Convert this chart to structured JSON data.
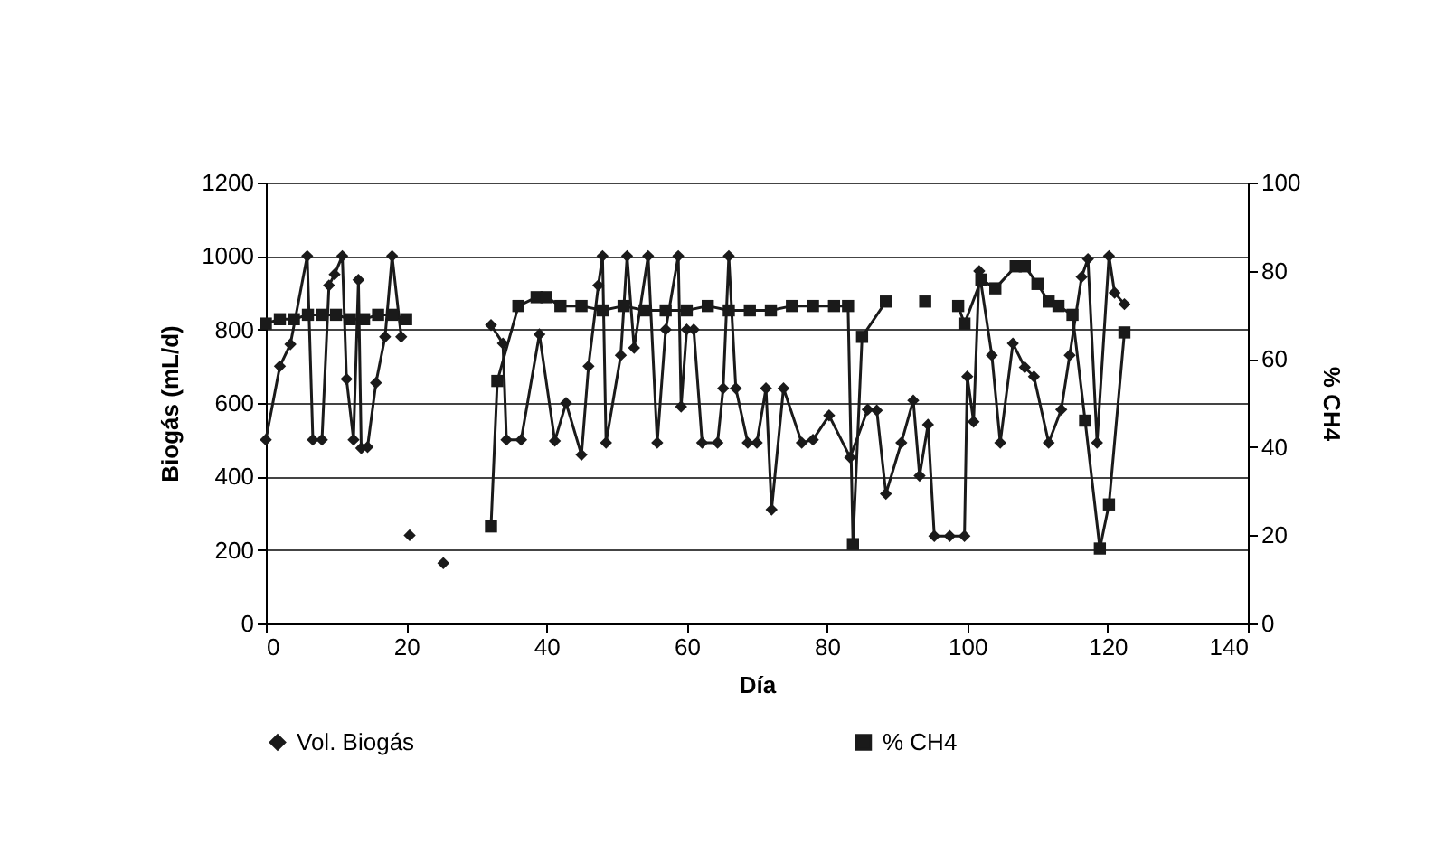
{
  "chart_data": {
    "type": "line",
    "xlabel": "Día",
    "ylabel": "Biogás (mL/d)",
    "y2label": "% CH4",
    "xlim": [
      0,
      140
    ],
    "xticks": [
      0,
      20,
      40,
      60,
      80,
      100,
      120,
      140
    ],
    "ylim": [
      0,
      1200
    ],
    "yticks": [
      0,
      200,
      400,
      600,
      800,
      1000,
      1200
    ],
    "y2lim": [
      0,
      100
    ],
    "y2ticks": [
      0,
      20,
      40,
      60,
      80,
      100
    ],
    "grid": "y",
    "legend": "bottom",
    "line_style": "solid",
    "series": [
      {
        "name": "Vol. Biogás",
        "color": "#1a1a1a",
        "marker": "diamond",
        "x": [
          0,
          2,
          3.5,
          5.9,
          6.7,
          8,
          9,
          9.8,
          10.9,
          11.5,
          12.5,
          13.2,
          13.6,
          14.5,
          15.7,
          17,
          18,
          19.3,
          20,
          20.5,
          23,
          25.3,
          28,
          32.1,
          33.8,
          34.3,
          36.4,
          39,
          41.2,
          42.8,
          45,
          46,
          47.4,
          48,
          48.5,
          50.6,
          51.5,
          52.5,
          54.5,
          55.8,
          57,
          58.8,
          59.2,
          60,
          61,
          62.2,
          64.4,
          65.2,
          66,
          67,
          68.7,
          70,
          71.3,
          72.1,
          73.8,
          76.4,
          78,
          80.3,
          83.3,
          85.8,
          87.1,
          88.4,
          90.6,
          92.3,
          93.2,
          94.4,
          95.3,
          97.5,
          99.6,
          100,
          100.9,
          101.7,
          103.5,
          104.7,
          106.5,
          108.2,
          109.5,
          111.6,
          113.4,
          114.6,
          116.3,
          117.2,
          118.5,
          120.2,
          121,
          122.4
        ],
        "values": [
          500,
          700,
          760,
          1000,
          500,
          500,
          920,
          950,
          1000,
          665,
          500,
          935,
          477,
          480,
          655,
          780,
          1000,
          780,
          null,
          240,
          null,
          164,
          null,
          812,
          762,
          500,
          500,
          787,
          497,
          600,
          459,
          700,
          920,
          1000,
          492,
          730,
          1000,
          750,
          1000,
          492,
          800,
          1000,
          590,
          800,
          800,
          492,
          492,
          640,
          1000,
          640,
          492,
          492,
          640,
          310,
          640,
          492,
          500,
          566,
          452,
          582,
          580,
          353,
          492,
          607,
          402,
          541,
          238,
          238,
          238,
          672,
          549,
          959,
          730,
          492,
          762,
          697,
          672,
          492,
          582,
          730,
          943,
          992,
          492,
          1000,
          900,
          869
        ]
      },
      {
        "name": "% CH4",
        "color": "#1a1a1a",
        "marker": "square",
        "axis": "y2",
        "x": [
          0,
          2,
          4,
          6,
          8,
          10,
          12,
          14,
          16,
          18,
          20,
          26,
          32.1,
          33,
          36,
          38.6,
          40,
          42,
          45,
          48,
          51,
          54,
          57,
          60,
          63,
          66,
          69,
          72,
          75,
          78,
          81,
          83,
          83.7,
          85,
          88.4,
          91,
          94,
          96,
          98.7,
          99.6,
          102,
          104,
          106.9,
          108.2,
          110,
          111.6,
          113,
          115,
          116.8,
          118.9,
          120.2,
          122.4
        ],
        "values": [
          68,
          69,
          69,
          70,
          70,
          70,
          69,
          69,
          70,
          70,
          69,
          null,
          22,
          55,
          72,
          74,
          74,
          72,
          72,
          71,
          72,
          71,
          71,
          71,
          72,
          71,
          71,
          71,
          72,
          72,
          72,
          72,
          18,
          65,
          73,
          null,
          73,
          null,
          72,
          68,
          78,
          76,
          81,
          81,
          77,
          73,
          72,
          70,
          46,
          17,
          27,
          66
        ]
      }
    ]
  }
}
